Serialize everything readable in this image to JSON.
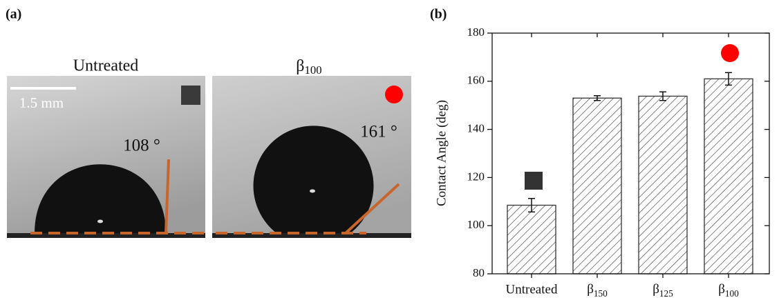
{
  "panel_a": {
    "label": "(a)",
    "images": [
      {
        "title": "Untreated",
        "angle_label": "108 °"
      },
      {
        "title": "β100",
        "angle_label": "161 °"
      }
    ],
    "scale_bar": "1.5 mm"
  },
  "chart_data": {
    "type": "bar",
    "label": "(b)",
    "y_label": "Contact Angle (deg)",
    "categories": [
      "Untreated",
      "β150",
      "β125",
      "β100"
    ],
    "values": [
      108.5,
      153,
      153.8,
      161
    ],
    "errors": [
      2.8,
      1,
      1.8,
      2.6
    ],
    "color": "#333333",
    "ylim": [
      80,
      180
    ],
    "yticks": [
      80,
      100,
      120,
      140,
      160,
      180
    ]
  }
}
